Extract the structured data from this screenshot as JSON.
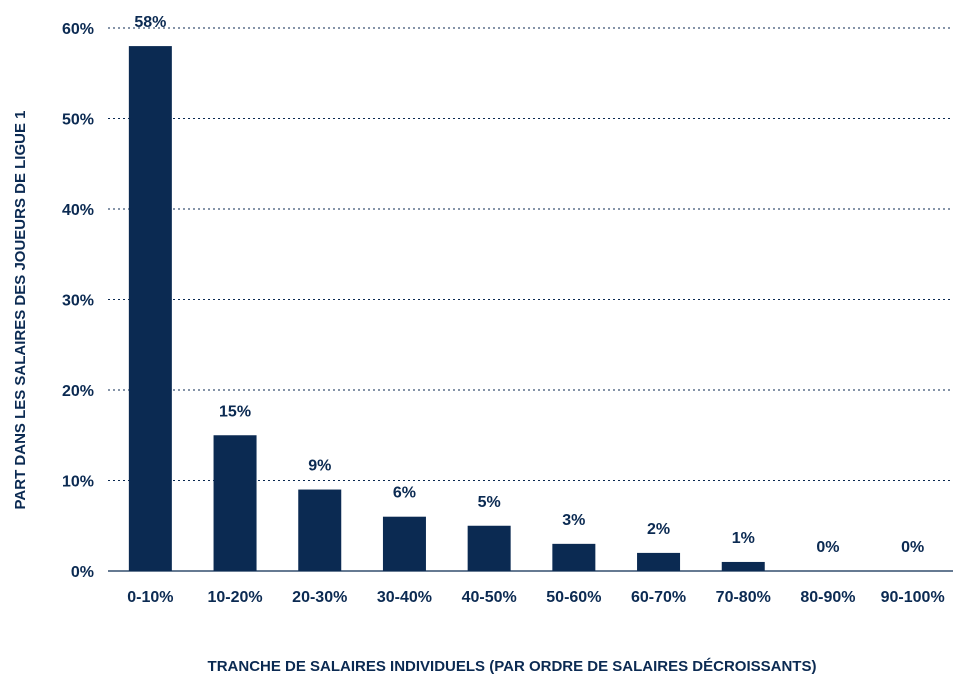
{
  "chart_data": {
    "type": "bar",
    "categories": [
      "0-10%",
      "10-20%",
      "20-30%",
      "30-40%",
      "40-50%",
      "50-60%",
      "60-70%",
      "70-80%",
      "80-90%",
      "90-100%"
    ],
    "values": [
      58,
      15,
      9,
      6,
      5,
      3,
      2,
      1,
      0,
      0
    ],
    "data_labels": [
      "58%",
      "15%",
      "9%",
      "6%",
      "5%",
      "3%",
      "2%",
      "1%",
      "0%",
      "0%"
    ],
    "xlabel": "TRANCHE DE SALAIRES INDIVIDUELS (PAR ORDRE DE SALAIRES DÉCROISSANTS)",
    "ylabel": "PART DANS LES SALAIRES DES JOUEURS DE LIGUE 1",
    "ylim": [
      0,
      60
    ],
    "yticks": [
      0,
      10,
      20,
      30,
      40,
      50,
      60
    ],
    "ytick_labels": [
      "0%",
      "10%",
      "20%",
      "30%",
      "40%",
      "50%",
      "60%"
    ],
    "grid": true,
    "bar_color": "#0b2a52",
    "text_color": "#0b2a52"
  }
}
